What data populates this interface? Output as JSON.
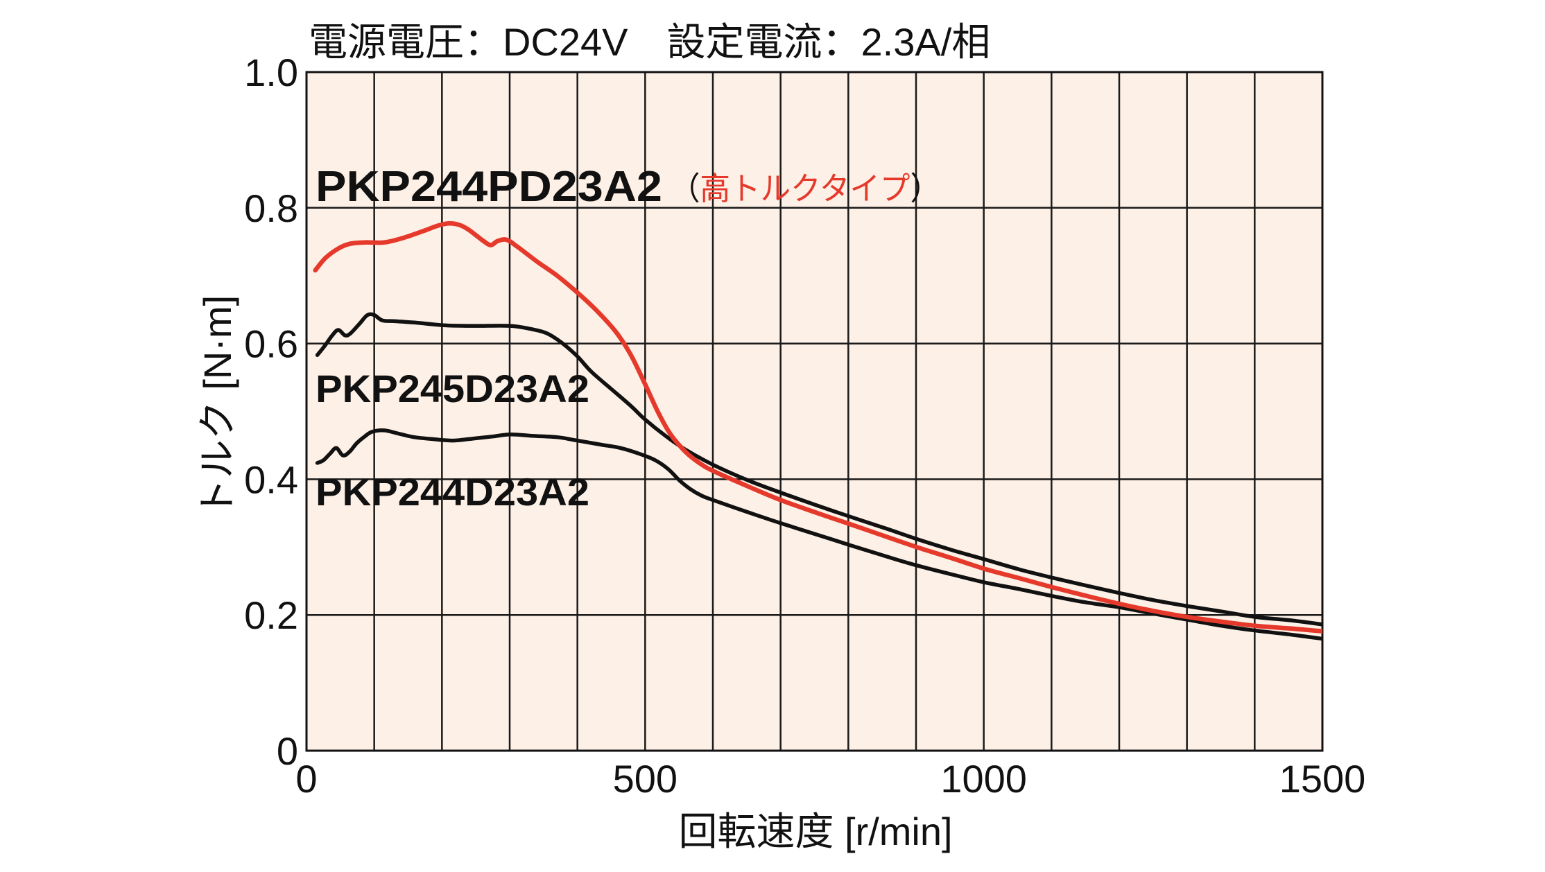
{
  "chart_data": {
    "type": "line",
    "title": "電源電圧：DC24V　設定電流：2.3A/相",
    "xlabel": "回転速度 [r/min]",
    "ylabel": "トルク [N·m]",
    "xlim": [
      0,
      1500
    ],
    "ylim": [
      0,
      1.0
    ],
    "xticks": [
      0,
      500,
      1000,
      1500
    ],
    "xtick_labels": [
      "0",
      "500",
      "1000",
      "1500"
    ],
    "yticks": [
      0,
      0.2,
      0.4,
      0.6,
      0.8,
      1.0
    ],
    "ytick_labels": [
      "0",
      "0.2",
      "0.4",
      "0.6",
      "0.8",
      "1.0"
    ],
    "grid": true,
    "x_grid_step": 100,
    "y_grid_step": 0.2,
    "legend": "inline",
    "plot_background": "#fdf0e6",
    "grid_color": "#1a1a1a",
    "series": [
      {
        "name": "PKP244PD23A2",
        "annotation_open": "（",
        "annotation": "高トルクタイプ",
        "annotation_close": "）",
        "annotation_color": "#e5392b",
        "color": "#e5392b",
        "points": [
          [
            13,
            0.708
          ],
          [
            28,
            0.726
          ],
          [
            47,
            0.74
          ],
          [
            64,
            0.747
          ],
          [
            86,
            0.749
          ],
          [
            115,
            0.749
          ],
          [
            144,
            0.756
          ],
          [
            173,
            0.766
          ],
          [
            195,
            0.774
          ],
          [
            210,
            0.777
          ],
          [
            225,
            0.775
          ],
          [
            239,
            0.768
          ],
          [
            260,
            0.752
          ],
          [
            272,
            0.745
          ],
          [
            282,
            0.751
          ],
          [
            295,
            0.753
          ],
          [
            311,
            0.743
          ],
          [
            340,
            0.721
          ],
          [
            370,
            0.7
          ],
          [
            400,
            0.675
          ],
          [
            428,
            0.649
          ],
          [
            457,
            0.617
          ],
          [
            479,
            0.583
          ],
          [
            500,
            0.54
          ],
          [
            519,
            0.499
          ],
          [
            537,
            0.467
          ],
          [
            559,
            0.441
          ],
          [
            580,
            0.424
          ],
          [
            601,
            0.412
          ],
          [
            653,
            0.389
          ],
          [
            701,
            0.369
          ],
          [
            755,
            0.35
          ],
          [
            802,
            0.334
          ],
          [
            857,
            0.315
          ],
          [
            901,
            0.3
          ],
          [
            952,
            0.284
          ],
          [
            1001,
            0.268
          ],
          [
            1053,
            0.254
          ],
          [
            1101,
            0.241
          ],
          [
            1148,
            0.229
          ],
          [
            1202,
            0.216
          ],
          [
            1250,
            0.206
          ],
          [
            1301,
            0.197
          ],
          [
            1352,
            0.19
          ],
          [
            1401,
            0.184
          ],
          [
            1454,
            0.18
          ],
          [
            1500,
            0.176
          ]
        ]
      },
      {
        "name": "PKP245D23A2",
        "color": "#111111",
        "points": [
          [
            16,
            0.583
          ],
          [
            28,
            0.598
          ],
          [
            38,
            0.612
          ],
          [
            47,
            0.62
          ],
          [
            57,
            0.612
          ],
          [
            65,
            0.615
          ],
          [
            79,
            0.63
          ],
          [
            90,
            0.642
          ],
          [
            100,
            0.642
          ],
          [
            112,
            0.634
          ],
          [
            129,
            0.633
          ],
          [
            159,
            0.631
          ],
          [
            202,
            0.627
          ],
          [
            246,
            0.626
          ],
          [
            301,
            0.626
          ],
          [
            333,
            0.621
          ],
          [
            355,
            0.615
          ],
          [
            377,
            0.601
          ],
          [
            400,
            0.581
          ],
          [
            420,
            0.559
          ],
          [
            450,
            0.533
          ],
          [
            479,
            0.508
          ],
          [
            500,
            0.488
          ],
          [
            530,
            0.464
          ],
          [
            559,
            0.444
          ],
          [
            601,
            0.421
          ],
          [
            653,
            0.398
          ],
          [
            701,
            0.38
          ],
          [
            755,
            0.361
          ],
          [
            802,
            0.345
          ],
          [
            857,
            0.327
          ],
          [
            901,
            0.312
          ],
          [
            952,
            0.296
          ],
          [
            1001,
            0.282
          ],
          [
            1053,
            0.267
          ],
          [
            1101,
            0.255
          ],
          [
            1148,
            0.244
          ],
          [
            1202,
            0.232
          ],
          [
            1250,
            0.222
          ],
          [
            1301,
            0.213
          ],
          [
            1352,
            0.205
          ],
          [
            1401,
            0.197
          ],
          [
            1454,
            0.192
          ],
          [
            1500,
            0.186
          ]
        ]
      },
      {
        "name": "PKP244D23A2",
        "color": "#111111",
        "points": [
          [
            16,
            0.424
          ],
          [
            25,
            0.428
          ],
          [
            35,
            0.438
          ],
          [
            44,
            0.446
          ],
          [
            54,
            0.435
          ],
          [
            64,
            0.441
          ],
          [
            74,
            0.453
          ],
          [
            86,
            0.463
          ],
          [
            97,
            0.47
          ],
          [
            115,
            0.472
          ],
          [
            137,
            0.467
          ],
          [
            159,
            0.462
          ],
          [
            188,
            0.459
          ],
          [
            217,
            0.457
          ],
          [
            246,
            0.46
          ],
          [
            275,
            0.463
          ],
          [
            301,
            0.466
          ],
          [
            333,
            0.464
          ],
          [
            370,
            0.462
          ],
          [
            400,
            0.457
          ],
          [
            435,
            0.451
          ],
          [
            464,
            0.446
          ],
          [
            493,
            0.437
          ],
          [
            515,
            0.428
          ],
          [
            534,
            0.415
          ],
          [
            551,
            0.398
          ],
          [
            566,
            0.386
          ],
          [
            583,
            0.376
          ],
          [
            601,
            0.369
          ],
          [
            653,
            0.351
          ],
          [
            701,
            0.335
          ],
          [
            755,
            0.318
          ],
          [
            802,
            0.303
          ],
          [
            857,
            0.286
          ],
          [
            901,
            0.273
          ],
          [
            952,
            0.26
          ],
          [
            1001,
            0.248
          ],
          [
            1053,
            0.238
          ],
          [
            1101,
            0.228
          ],
          [
            1148,
            0.219
          ],
          [
            1202,
            0.211
          ],
          [
            1250,
            0.202
          ],
          [
            1301,
            0.193
          ],
          [
            1352,
            0.184
          ],
          [
            1401,
            0.177
          ],
          [
            1454,
            0.171
          ],
          [
            1500,
            0.165
          ]
        ]
      }
    ]
  }
}
